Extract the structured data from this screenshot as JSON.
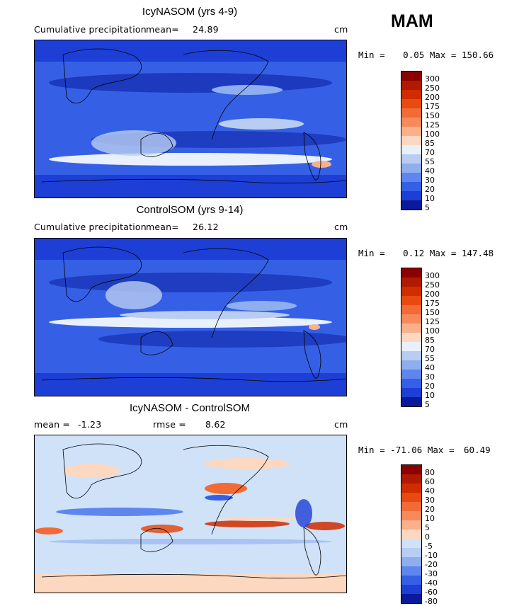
{
  "season": "MAM",
  "panels": [
    {
      "title": "IcyNASOM (yrs 4-9)",
      "subtitle_left": "Cumulative precipitation",
      "mean_label": "mean=",
      "mean_value": "24.89",
      "unit": "cm",
      "min_label": "Min =",
      "min_value": "0.05",
      "max_label": "Max =",
      "max_value": "150.66",
      "colorbar": [
        "300",
        "250",
        "200",
        "175",
        "150",
        "125",
        "100",
        "85",
        "70",
        "55",
        "40",
        "30",
        "20",
        "10",
        "5"
      ]
    },
    {
      "title": "ControlSOM (yrs 9-14)",
      "subtitle_left": "Cumulative precipitation",
      "mean_label": "mean=",
      "mean_value": "26.12",
      "unit": "cm",
      "min_label": "Min =",
      "min_value": "0.12",
      "max_label": "Max =",
      "max_value": "147.48",
      "colorbar": [
        "300",
        "250",
        "200",
        "175",
        "150",
        "125",
        "100",
        "85",
        "70",
        "55",
        "40",
        "30",
        "20",
        "10",
        "5"
      ]
    },
    {
      "title": "IcyNASOM - ControlSOM",
      "mean_label": "mean =",
      "mean_value": "-1.23",
      "rmse_label": "rmse =",
      "rmse_value": "8.62",
      "unit": "cm",
      "min_label": "Min =",
      "min_value": "-71.06",
      "max_label": "Max =",
      "max_value": "60.49",
      "colorbar": [
        "80",
        "60",
        "40",
        "30",
        "20",
        "10",
        "5",
        "0",
        "-5",
        "-10",
        "-20",
        "-30",
        "-40",
        "-60",
        "-80"
      ]
    }
  ],
  "colors": {
    "precip_scale": [
      "#8b0000",
      "#b01a00",
      "#d02c00",
      "#e84a10",
      "#f26a35",
      "#f78a5a",
      "#fbb08c",
      "#fdd8c0",
      "#e8f0fb",
      "#b9cdf2",
      "#8eaef0",
      "#5e86ee",
      "#3560e6",
      "#1d3fd6",
      "#0a1a9a"
    ],
    "diff_scale": [
      "#8b0000",
      "#b01a00",
      "#d02c00",
      "#e84a10",
      "#f26a35",
      "#f78a5a",
      "#fbb08c",
      "#fdd8c0",
      "#cfe2f8",
      "#b9cdf2",
      "#8eaef0",
      "#5e86ee",
      "#3560e6",
      "#1d3fd6",
      "#0a1a9a"
    ]
  }
}
